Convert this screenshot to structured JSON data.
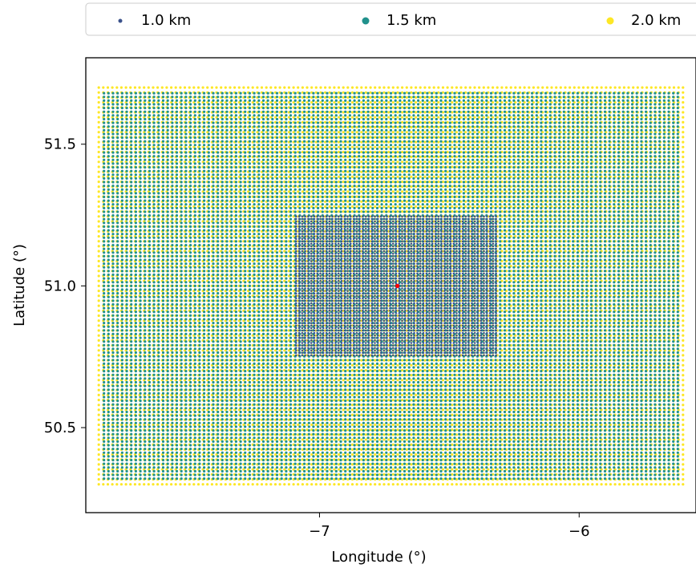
{
  "chart_data": {
    "type": "scatter",
    "title": "",
    "xlabel": "Longitude (°)",
    "ylabel": "Latitude (°)",
    "xlim": [
      -7.9,
      -5.55
    ],
    "ylim": [
      50.2,
      51.805
    ],
    "xticks": [
      -7,
      -6
    ],
    "xtick_labels": [
      "−7",
      "−6"
    ],
    "yticks": [
      50.5,
      51.0,
      51.5
    ],
    "ytick_labels": [
      "50.5",
      "51.0",
      "51.5"
    ],
    "grid": false,
    "legend_position": "top",
    "series": [
      {
        "name": "2.0 km",
        "color": "#fde725",
        "region": {
          "lon": [
            -7.85,
            -5.6
          ],
          "lat": [
            50.3,
            51.7
          ]
        },
        "lon_step": 0.0175,
        "lat_step": 0.0175
      },
      {
        "name": "1.5 km",
        "color": "#21918c",
        "region": {
          "lon": [
            -7.83,
            -5.62
          ],
          "lat": [
            50.32,
            51.68
          ]
        },
        "lon_step": 0.0175,
        "lat_step": 0.0131
      },
      {
        "name": "1.0 km",
        "color": "#3b528b",
        "region": {
          "lon": [
            -7.09,
            -6.32
          ],
          "lat": [
            50.755,
            51.245
          ]
        },
        "lon_step": 0.0117,
        "lat_step": 0.0088
      }
    ],
    "legend": [
      "1.0 km",
      "1.5 km",
      "2.0 km"
    ],
    "center_point": {
      "lon": -6.7,
      "lat": 51.0,
      "color": "#ff0000"
    }
  }
}
